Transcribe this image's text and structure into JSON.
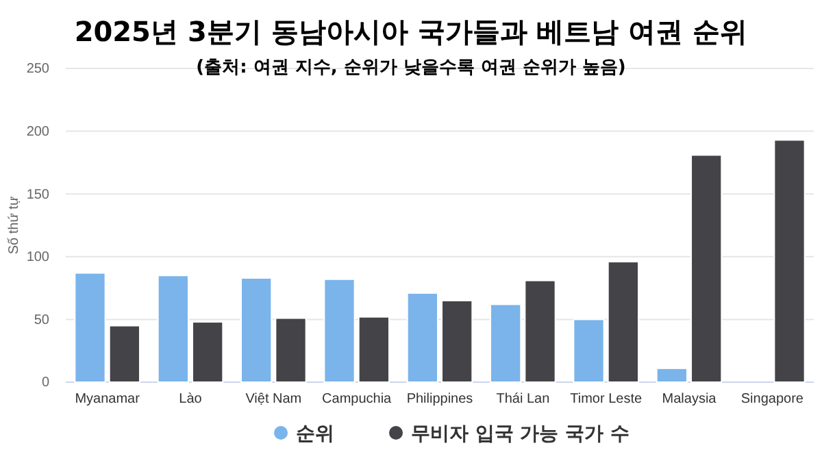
{
  "chart_data": {
    "type": "bar",
    "title": "2025년 3분기 동남아시아 국가들과 베트남 여권 순위",
    "subtitle": "(출처: 여권 지수, 순위가 낮을수록 여권 순위가 높음)",
    "ylabel": "Số thứ tự",
    "categories": [
      "Myanamar",
      "Lào",
      "Việt Nam",
      "Campuchia",
      "Philippines",
      "Thái Lan",
      "Timor Leste",
      "Malaysia",
      "Singapore"
    ],
    "series": [
      {
        "name": "순위",
        "color": "#7ab4ea",
        "values": [
          87,
          85,
          83,
          82,
          71,
          62,
          50,
          11,
          null
        ]
      },
      {
        "name": "무비자 입국 가능 국가 수",
        "color": "#434348",
        "values": [
          45,
          48,
          51,
          52,
          65,
          81,
          96,
          181,
          193
        ]
      }
    ],
    "ylim": [
      0,
      250
    ],
    "yticks": [
      0,
      50,
      100,
      150,
      200,
      250
    ],
    "grid": "y",
    "legend": "bottom"
  }
}
